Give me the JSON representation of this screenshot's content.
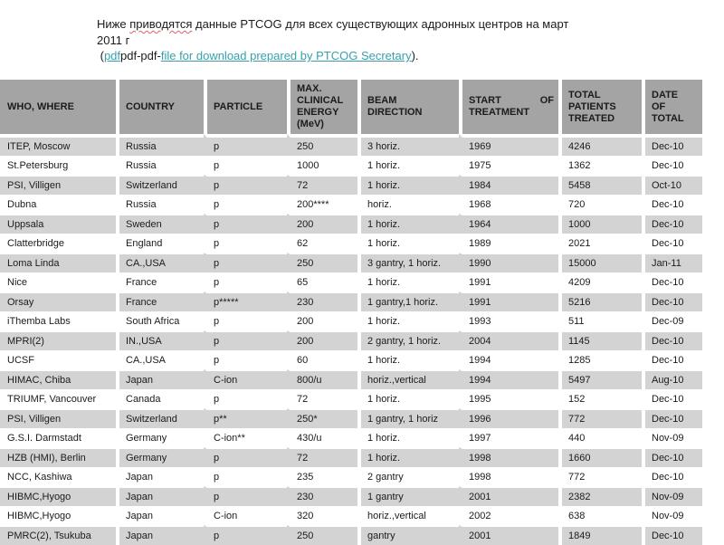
{
  "colors": {
    "link": "#38a0ad",
    "header_bg": "#a4a4a4",
    "row_alt_bg": "#d3d3d3"
  },
  "intro": {
    "seg1": "Ниже ",
    "seg2": "приводятся",
    "seg3": " данные PTCOG для всех существующих адронных центров на март",
    "line2": "2011 г",
    "paren_open": " (",
    "link_pdf": "pdf",
    "mid": "pdf-pdf-",
    "link_file": "file for download prepared by PTCOG Secretary",
    "paren_close": ")."
  },
  "table": {
    "headers": [
      "WHO, WHERE",
      "COUNTRY",
      "PARTICLE",
      "MAX.\nCLINICAL\nENERGY\n(MeV)",
      "BEAM\nDIRECTION",
      "START OF TREATMENT",
      "TOTAL\nPATIENTS\nTREATED",
      "DATE\nOF\nTOTAL"
    ],
    "rows": [
      [
        "ITEP, Moscow",
        "Russia",
        "p",
        "250",
        "3 horiz.",
        "1969",
        "4246",
        "Dec-10"
      ],
      [
        "St.Petersburg",
        "Russia",
        "p",
        "1000",
        "1 horiz.",
        "1975",
        "1362",
        "Dec-10"
      ],
      [
        "PSI, Villigen",
        "Switzerland",
        "p",
        "72",
        "1 horiz.",
        "1984",
        "5458",
        "Oct-10"
      ],
      [
        "Dubna",
        "Russia",
        "p",
        "200****",
        "horiz.",
        "1968",
        "720",
        "Dec-10"
      ],
      [
        "Uppsala",
        "Sweden",
        "p",
        "200",
        "1 horiz.",
        "1964",
        "1000",
        "Dec-10"
      ],
      [
        "Clatterbridge",
        "England",
        "p",
        "62",
        "1 horiz.",
        "1989",
        "2021",
        "Dec-10"
      ],
      [
        "Loma Linda",
        "CA.,USA",
        "p",
        "250",
        "3 gantry, 1 horiz.",
        "1990",
        "15000",
        "Jan-11"
      ],
      [
        "Nice",
        "France",
        "p",
        "65",
        "1 horiz.",
        "1991",
        "4209",
        "Dec-10"
      ],
      [
        "Orsay",
        "France",
        "p*****",
        "230",
        "1 gantry,1 horiz.",
        "1991",
        "5216",
        "Dec-10"
      ],
      [
        "iThemba Labs",
        "South Africa",
        "p",
        "200",
        "1 horiz.",
        "1993",
        "511",
        "Dec-09"
      ],
      [
        "MPRI(2)",
        "IN.,USA",
        "p",
        "200",
        "2 gantry, 1 horiz.",
        "2004",
        "1145",
        "Dec-10"
      ],
      [
        "UCSF",
        "CA.,USA",
        "p",
        "60",
        "1 horiz.",
        "1994",
        "1285",
        "Dec-10"
      ],
      [
        "HIMAC, Chiba",
        "Japan",
        "C-ion",
        "800/u",
        "horiz.,vertical",
        "1994",
        "5497",
        "Aug-10"
      ],
      [
        "TRIUMF, Vancouver",
        "Canada",
        "p",
        "72",
        "1 horiz.",
        "1995",
        "152",
        "Dec-10"
      ],
      [
        "PSI, Villigen",
        "Switzerland",
        "p**",
        "250*",
        "1 gantry, 1 horiz",
        "1996",
        "772",
        "Dec-10"
      ],
      [
        "G.S.I. Darmstadt",
        "Germany",
        "C-ion**",
        "430/u",
        "1 horiz.",
        "1997",
        "440",
        "Nov-09"
      ],
      [
        "HZB (HMI), Berlin",
        "Germany",
        "p",
        "72",
        "1 horiz.",
        "1998",
        "1660",
        "Dec-10"
      ],
      [
        "NCC, Kashiwa",
        "Japan",
        "p",
        "235",
        "2 gantry",
        "1998",
        "772",
        "Dec-10"
      ],
      [
        "HIBMC,Hyogo",
        "Japan",
        "p",
        "230",
        "1 gantry",
        "2001",
        "2382",
        "Nov-09"
      ],
      [
        "HIBMC,Hyogo",
        "Japan",
        "C-ion",
        "320",
        "horiz.,vertical",
        "2002",
        "638",
        "Nov-09"
      ],
      [
        "PMRC(2), Tsukuba",
        "Japan",
        "p",
        "250",
        "gantry",
        "2001",
        "1849",
        "Dec-10"
      ]
    ]
  }
}
